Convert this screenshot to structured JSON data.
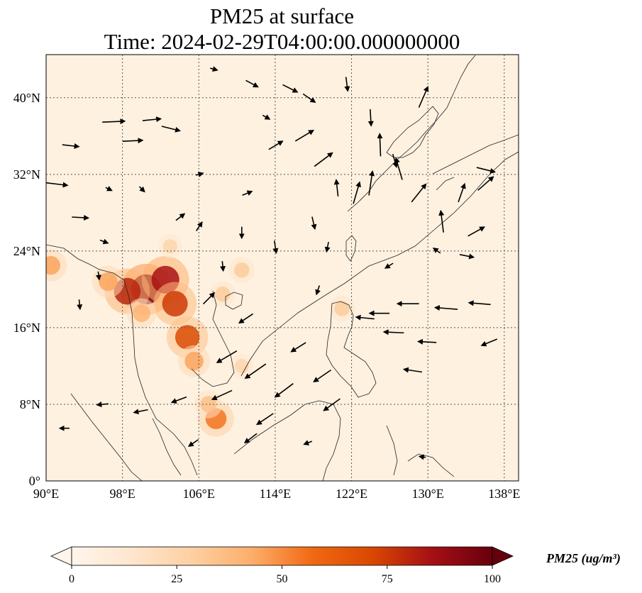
{
  "title": {
    "line1": "PM25 at surface",
    "line2": "Time: 2024-02-29T04:00:00.000000000"
  },
  "map": {
    "extent": {
      "lon": [
        90,
        139.5
      ],
      "lat": [
        0,
        44.5
      ]
    },
    "lon_ticks": [
      {
        "value": 90,
        "label": "90°E"
      },
      {
        "value": 98,
        "label": "98°E"
      },
      {
        "value": 106,
        "label": "106°E"
      },
      {
        "value": 114,
        "label": "114°E"
      },
      {
        "value": 122,
        "label": "122°E"
      },
      {
        "value": 130,
        "label": "130°E"
      },
      {
        "value": 138,
        "label": "138°E"
      }
    ],
    "lat_ticks": [
      {
        "value": 0,
        "label": "0°"
      },
      {
        "value": 8,
        "label": "8°N"
      },
      {
        "value": 16,
        "label": "16°N"
      },
      {
        "value": 24,
        "label": "24°N"
      },
      {
        "value": 32,
        "label": "32°N"
      },
      {
        "value": 40,
        "label": "40°N"
      }
    ],
    "gridlines": true,
    "background_color": "#fef1e0",
    "hotspots": [
      {
        "lon": 100.5,
        "lat": 20.0,
        "value": 95
      },
      {
        "lon": 102.5,
        "lat": 21.0,
        "value": 85
      },
      {
        "lon": 98.5,
        "lat": 19.8,
        "value": 80
      },
      {
        "lon": 103.5,
        "lat": 18.5,
        "value": 75
      },
      {
        "lon": 104.8,
        "lat": 15.0,
        "value": 70
      },
      {
        "lon": 105.5,
        "lat": 12.5,
        "value": 45
      },
      {
        "lon": 107.8,
        "lat": 6.5,
        "value": 55
      },
      {
        "lon": 107.0,
        "lat": 8.0,
        "value": 35
      },
      {
        "lon": 96.5,
        "lat": 20.8,
        "value": 45
      },
      {
        "lon": 100.0,
        "lat": 17.5,
        "value": 40
      },
      {
        "lon": 108.5,
        "lat": 19.5,
        "value": 30
      },
      {
        "lon": 110.5,
        "lat": 22.0,
        "value": 30
      },
      {
        "lon": 90.5,
        "lat": 22.5,
        "value": 45
      },
      {
        "lon": 110.5,
        "lat": 12.0,
        "value": 25
      },
      {
        "lon": 121.0,
        "lat": 18.0,
        "value": 30
      },
      {
        "lon": 103.0,
        "lat": 24.5,
        "value": 25
      }
    ],
    "winds": [
      {
        "lon": 91.0,
        "lat": 31.0,
        "u": 2.5,
        "v": -0.3
      },
      {
        "lon": 92.5,
        "lat": 35.0,
        "u": 1.8,
        "v": -0.2
      },
      {
        "lon": 97.0,
        "lat": 37.5,
        "u": 2.5,
        "v": 0.1
      },
      {
        "lon": 99.0,
        "lat": 35.5,
        "u": 2.2,
        "v": 0.1
      },
      {
        "lon": 101.0,
        "lat": 37.7,
        "u": 2.0,
        "v": 0.2
      },
      {
        "lon": 103.0,
        "lat": 36.8,
        "u": 2.0,
        "v": -0.5
      },
      {
        "lon": 93.5,
        "lat": 27.5,
        "u": 1.8,
        "v": -0.1
      },
      {
        "lon": 96.0,
        "lat": 25.0,
        "u": 0.8,
        "v": -0.3
      },
      {
        "lon": 104.0,
        "lat": 27.5,
        "u": 0.9,
        "v": 0.7
      },
      {
        "lon": 106.0,
        "lat": 26.5,
        "u": 0.6,
        "v": 0.9
      },
      {
        "lon": 107.0,
        "lat": 19.0,
        "u": 1.2,
        "v": 1.2
      },
      {
        "lon": 109.0,
        "lat": 13.0,
        "u": -2.2,
        "v": -1.3
      },
      {
        "lon": 112.0,
        "lat": 11.5,
        "u": -2.3,
        "v": -1.6
      },
      {
        "lon": 115.0,
        "lat": 9.5,
        "u": -2.0,
        "v": -1.5
      },
      {
        "lon": 113.0,
        "lat": 6.5,
        "u": -1.8,
        "v": -1.2
      },
      {
        "lon": 108.5,
        "lat": 9.0,
        "u": -2.2,
        "v": -1.0
      },
      {
        "lon": 104.0,
        "lat": 8.5,
        "u": -1.6,
        "v": -0.6
      },
      {
        "lon": 100.0,
        "lat": 7.3,
        "u": -1.5,
        "v": -0.3
      },
      {
        "lon": 96.0,
        "lat": 8.0,
        "u": -1.2,
        "v": -0.1
      },
      {
        "lon": 92.0,
        "lat": 5.5,
        "u": -1.0,
        "v": 0.0
      },
      {
        "lon": 111.0,
        "lat": 17.0,
        "u": -1.5,
        "v": -1.0
      },
      {
        "lon": 116.5,
        "lat": 14.0,
        "u": -1.6,
        "v": -1.0
      },
      {
        "lon": 119.0,
        "lat": 11.0,
        "u": -1.9,
        "v": -1.3
      },
      {
        "lon": 120.0,
        "lat": 8.0,
        "u": -1.8,
        "v": -1.3
      },
      {
        "lon": 125.0,
        "lat": 17.5,
        "u": -2.2,
        "v": 0.0
      },
      {
        "lon": 128.0,
        "lat": 18.5,
        "u": -2.4,
        "v": 0.0
      },
      {
        "lon": 132.0,
        "lat": 18.0,
        "u": -2.5,
        "v": 0.2
      },
      {
        "lon": 135.5,
        "lat": 18.5,
        "u": -2.4,
        "v": 0.2
      },
      {
        "lon": 126.5,
        "lat": 15.5,
        "u": -2.2,
        "v": 0.1
      },
      {
        "lon": 130.0,
        "lat": 14.5,
        "u": -2.0,
        "v": 0.1
      },
      {
        "lon": 136.5,
        "lat": 14.5,
        "u": -1.7,
        "v": -0.7
      },
      {
        "lon": 128.5,
        "lat": 11.5,
        "u": -2.0,
        "v": 0.3
      },
      {
        "lon": 123.5,
        "lat": 17.0,
        "u": -2.0,
        "v": 0.2
      },
      {
        "lon": 124.0,
        "lat": 31.0,
        "u": 0.4,
        "v": 2.7
      },
      {
        "lon": 122.5,
        "lat": 30.0,
        "u": 0.7,
        "v": 2.4
      },
      {
        "lon": 125.0,
        "lat": 35.0,
        "u": -0.1,
        "v": 2.5
      },
      {
        "lon": 127.0,
        "lat": 32.5,
        "u": -0.7,
        "v": 2.4
      },
      {
        "lon": 129.0,
        "lat": 30.0,
        "u": 1.6,
        "v": 2.0
      },
      {
        "lon": 131.5,
        "lat": 27.0,
        "u": -0.3,
        "v": 2.4
      },
      {
        "lon": 133.5,
        "lat": 30.0,
        "u": 0.7,
        "v": 2.0
      },
      {
        "lon": 135.0,
        "lat": 26.0,
        "u": 1.8,
        "v": 1.0
      },
      {
        "lon": 136.0,
        "lat": 31.0,
        "u": 1.7,
        "v": 1.5
      },
      {
        "lon": 136.0,
        "lat": 32.5,
        "u": 2.0,
        "v": -0.5
      },
      {
        "lon": 129.5,
        "lat": 40.0,
        "u": 1.0,
        "v": 2.3
      },
      {
        "lon": 117.0,
        "lat": 36.0,
        "u": 2.0,
        "v": 1.2
      },
      {
        "lon": 119.0,
        "lat": 33.5,
        "u": 2.0,
        "v": 1.5
      },
      {
        "lon": 114.0,
        "lat": 35.0,
        "u": 1.5,
        "v": 0.9
      },
      {
        "lon": 111.0,
        "lat": 30.0,
        "u": 1.0,
        "v": 0.4
      },
      {
        "lon": 118.0,
        "lat": 27.0,
        "u": 0.3,
        "v": -1.3
      },
      {
        "lon": 114.0,
        "lat": 24.5,
        "u": 0.2,
        "v": -1.3
      },
      {
        "lon": 110.5,
        "lat": 26.0,
        "u": 0.0,
        "v": -1.2
      },
      {
        "lon": 111.5,
        "lat": 41.5,
        "u": 1.3,
        "v": -0.7
      },
      {
        "lon": 115.5,
        "lat": 41.0,
        "u": 1.6,
        "v": -0.8
      },
      {
        "lon": 117.5,
        "lat": 40.0,
        "u": 1.3,
        "v": -0.9
      },
      {
        "lon": 113.0,
        "lat": 38.0,
        "u": 0.7,
        "v": -0.4
      },
      {
        "lon": 107.5,
        "lat": 43.0,
        "u": 0.7,
        "v": -0.2
      },
      {
        "lon": 121.5,
        "lat": 41.5,
        "u": 0.2,
        "v": -1.5
      },
      {
        "lon": 124.0,
        "lat": 38.0,
        "u": 0.1,
        "v": -1.8
      },
      {
        "lon": 126.5,
        "lat": 33.5,
        "u": 0.4,
        "v": -1.4
      },
      {
        "lon": 120.5,
        "lat": 30.5,
        "u": -0.2,
        "v": 1.8
      },
      {
        "lon": 119.5,
        "lat": 24.5,
        "u": -0.2,
        "v": -1.0
      },
      {
        "lon": 106.0,
        "lat": 32.0,
        "u": 0.7,
        "v": 0.2
      },
      {
        "lon": 100.0,
        "lat": 30.5,
        "u": 0.5,
        "v": -0.5
      },
      {
        "lon": 96.5,
        "lat": 30.5,
        "u": 0.6,
        "v": -0.3
      },
      {
        "lon": 93.5,
        "lat": 18.5,
        "u": 0.1,
        "v": -1.0
      },
      {
        "lon": 95.5,
        "lat": 21.5,
        "u": 0.1,
        "v": -0.8
      },
      {
        "lon": 108.5,
        "lat": 22.5,
        "u": 0.1,
        "v": -1.0
      },
      {
        "lon": 118.5,
        "lat": 20.0,
        "u": -0.3,
        "v": -0.9
      },
      {
        "lon": 126.0,
        "lat": 22.5,
        "u": -0.8,
        "v": -0.5
      },
      {
        "lon": 131.0,
        "lat": 24.0,
        "u": -0.7,
        "v": 0.5
      },
      {
        "lon": 134.0,
        "lat": 23.5,
        "u": 1.5,
        "v": -0.3
      },
      {
        "lon": 111.5,
        "lat": 4.5,
        "u": -1.3,
        "v": -1.0
      },
      {
        "lon": 105.5,
        "lat": 4.0,
        "u": -1.0,
        "v": -0.7
      },
      {
        "lon": 117.5,
        "lat": 4.0,
        "u": -0.8,
        "v": -0.3
      },
      {
        "lon": 129.5,
        "lat": 2.5,
        "u": -0.6,
        "v": 0.1
      }
    ]
  },
  "colorbar": {
    "title": "PM25 (ug/m³)",
    "min": 0,
    "max": 100,
    "ticks": [
      {
        "value": 0,
        "label": "0"
      },
      {
        "value": 25,
        "label": "25"
      },
      {
        "value": 50,
        "label": "50"
      },
      {
        "value": 75,
        "label": "75"
      },
      {
        "value": 100,
        "label": "100"
      }
    ],
    "colors": [
      "#fff5eb",
      "#fee6ce",
      "#fdd0a2",
      "#fdae6b",
      "#f16913",
      "#d94801",
      "#a50f15",
      "#67000d"
    ],
    "extend": "both"
  }
}
